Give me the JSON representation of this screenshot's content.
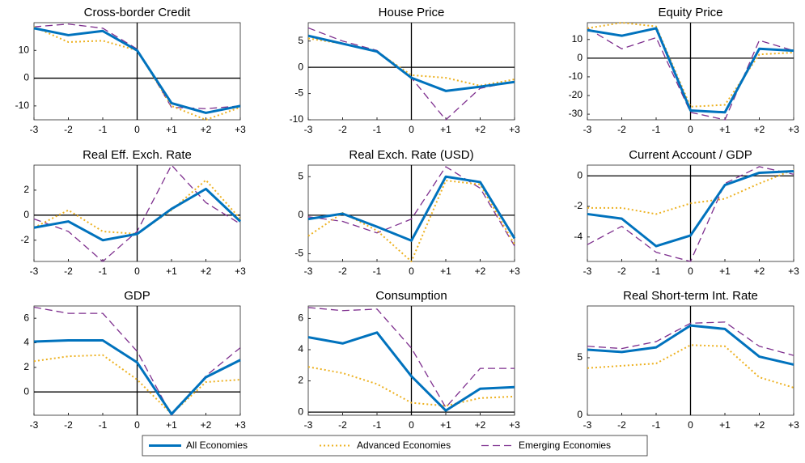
{
  "chart_data": [
    {
      "type": "line",
      "title": "Cross-border Credit",
      "categories": [
        "-3",
        "-2",
        "-1",
        "0",
        "+1",
        "+2",
        "+3"
      ],
      "ylim": [
        -15,
        20
      ],
      "yticks": [
        -10,
        0,
        10
      ],
      "series": [
        {
          "name": "All Economies",
          "color": "#0072bd",
          "style": "solid",
          "values": [
            18,
            15.5,
            17,
            10,
            -9,
            -12.5,
            -10
          ]
        },
        {
          "name": "Advanced Economies",
          "color": "#edb120",
          "style": "dotted",
          "values": [
            18.5,
            13,
            13.5,
            10,
            -10,
            -15,
            -10.5
          ]
        },
        {
          "name": "Emerging Economies",
          "color": "#7e2f8e",
          "style": "dashed",
          "values": [
            18.5,
            19.5,
            18,
            10.5,
            -10.5,
            -11,
            -10
          ]
        }
      ]
    },
    {
      "type": "line",
      "title": "House Price",
      "categories": [
        "-3",
        "-2",
        "-1",
        "0",
        "+1",
        "+2",
        "+3"
      ],
      "ylim": [
        -10,
        8.5
      ],
      "yticks": [
        -10,
        -5,
        0,
        5
      ],
      "series": [
        {
          "name": "All Economies",
          "color": "#0072bd",
          "style": "solid",
          "values": [
            6,
            4.5,
            3,
            -2,
            -4.5,
            -3.7,
            -2.8
          ]
        },
        {
          "name": "Advanced Economies",
          "color": "#edb120",
          "style": "dotted",
          "values": [
            5.5,
            4.5,
            3,
            -1.5,
            -2,
            -3.5,
            -2.3
          ]
        },
        {
          "name": "Emerging Economies",
          "color": "#7e2f8e",
          "style": "dashed",
          "values": [
            7.5,
            5,
            3.2,
            -2,
            -10,
            -4,
            -2.7
          ]
        }
      ]
    },
    {
      "type": "line",
      "title": "Equity Price",
      "categories": [
        "-3",
        "-2",
        "-1",
        "0",
        "+1",
        "+2",
        "+3"
      ],
      "ylim": [
        -33,
        19
      ],
      "yticks": [
        -30,
        -20,
        -10,
        0,
        10
      ],
      "series": [
        {
          "name": "All Economies",
          "color": "#0072bd",
          "style": "solid",
          "values": [
            15,
            12,
            16,
            -28,
            -29,
            5,
            4
          ]
        },
        {
          "name": "Advanced Economies",
          "color": "#edb120",
          "style": "dotted",
          "values": [
            16,
            19,
            17,
            -26,
            -25,
            2,
            3
          ]
        },
        {
          "name": "Emerging Economies",
          "color": "#7e2f8e",
          "style": "dashed",
          "values": [
            16,
            5,
            11,
            -29,
            -33,
            9.5,
            4
          ]
        }
      ]
    },
    {
      "type": "line",
      "title": "Real Eff. Exch. Rate",
      "categories": [
        "-3",
        "-2",
        "-1",
        "0",
        "+1",
        "+2",
        "+3"
      ],
      "ylim": [
        -3.7,
        4
      ],
      "yticks": [
        -2,
        0,
        2
      ],
      "series": [
        {
          "name": "All Economies",
          "color": "#0072bd",
          "style": "solid",
          "values": [
            -1,
            -0.5,
            -2,
            -1.5,
            0.5,
            2.1,
            -0.5
          ]
        },
        {
          "name": "Advanced Economies",
          "color": "#edb120",
          "style": "dotted",
          "values": [
            -1,
            0.4,
            -1.3,
            -1.5,
            0.4,
            2.8,
            -0.3
          ]
        },
        {
          "name": "Emerging Economies",
          "color": "#7e2f8e",
          "style": "dashed",
          "values": [
            -0.3,
            -1.3,
            -3.7,
            -1.3,
            4,
            1,
            -0.7
          ]
        }
      ]
    },
    {
      "type": "line",
      "title": "Real Exch. Rate (USD)",
      "categories": [
        "-3",
        "-2",
        "-1",
        "0",
        "+1",
        "+2",
        "+3"
      ],
      "ylim": [
        -6,
        6.5
      ],
      "yticks": [
        -5,
        0,
        5
      ],
      "series": [
        {
          "name": "All Economies",
          "color": "#0072bd",
          "style": "solid",
          "values": [
            -0.5,
            0.2,
            -1.5,
            -3.3,
            5,
            4.3,
            -3
          ]
        },
        {
          "name": "Advanced Economies",
          "color": "#edb120",
          "style": "dotted",
          "values": [
            -2.7,
            0.3,
            -2,
            -6,
            4.5,
            4,
            -3.8
          ]
        },
        {
          "name": "Emerging Economies",
          "color": "#7e2f8e",
          "style": "dashed",
          "values": [
            -0.2,
            -0.8,
            -2.3,
            -0.5,
            6.3,
            3.5,
            -4
          ]
        }
      ]
    },
    {
      "type": "line",
      "title": "Current Account / GDP",
      "categories": [
        "-3",
        "-2",
        "-1",
        "0",
        "+1",
        "+2",
        "+3"
      ],
      "ylim": [
        -5.6,
        0.7
      ],
      "yticks": [
        -4,
        -2,
        0
      ],
      "series": [
        {
          "name": "All Economies",
          "color": "#0072bd",
          "style": "solid",
          "values": [
            -2.5,
            -2.8,
            -4.6,
            -3.9,
            -0.6,
            0.2,
            0.3
          ]
        },
        {
          "name": "Advanced Economies",
          "color": "#edb120",
          "style": "dotted",
          "values": [
            -2.1,
            -2.1,
            -2.5,
            -1.8,
            -1.5,
            -0.5,
            0.4
          ]
        },
        {
          "name": "Emerging Economies",
          "color": "#7e2f8e",
          "style": "dashed",
          "values": [
            -4.5,
            -3.3,
            -5,
            -5.6,
            -0.5,
            0.6,
            0.1
          ]
        }
      ]
    },
    {
      "type": "line",
      "title": "GDP",
      "categories": [
        "-3",
        "-2",
        "-1",
        "0",
        "+1",
        "+2",
        "+3"
      ],
      "ylim": [
        -1.9,
        7
      ],
      "yticks": [
        0,
        2,
        4,
        6
      ],
      "series": [
        {
          "name": "All Economies",
          "color": "#0072bd",
          "style": "solid",
          "values": [
            4.1,
            4.2,
            4.2,
            2.4,
            -1.8,
            1.2,
            2.6
          ]
        },
        {
          "name": "Advanced Economies",
          "color": "#edb120",
          "style": "dotted",
          "values": [
            2.5,
            2.9,
            3,
            1,
            -1.8,
            0.8,
            1.0
          ]
        },
        {
          "name": "Emerging Economies",
          "color": "#7e2f8e",
          "style": "dashed",
          "values": [
            6.9,
            6.4,
            6.4,
            3.3,
            -1.9,
            1.3,
            3.6
          ]
        }
      ]
    },
    {
      "type": "line",
      "title": "Consumption",
      "categories": [
        "-3",
        "-2",
        "-1",
        "0",
        "+1",
        "+2",
        "+3"
      ],
      "ylim": [
        -0.2,
        6.8
      ],
      "yticks": [
        0,
        2,
        4,
        6
      ],
      "series": [
        {
          "name": "All Economies",
          "color": "#0072bd",
          "style": "solid",
          "values": [
            4.8,
            4.4,
            5.1,
            2.3,
            0.1,
            1.5,
            1.6
          ]
        },
        {
          "name": "Advanced Economies",
          "color": "#edb120",
          "style": "dotted",
          "values": [
            2.9,
            2.5,
            1.8,
            0.6,
            0.4,
            0.9,
            1.0
          ]
        },
        {
          "name": "Emerging Economies",
          "color": "#7e2f8e",
          "style": "dashed",
          "values": [
            6.7,
            6.5,
            6.6,
            4.1,
            0.3,
            2.8,
            2.8
          ]
        }
      ]
    },
    {
      "type": "line",
      "title": "Real Short-term Int. Rate",
      "categories": [
        "-3",
        "-2",
        "-1",
        "0",
        "+1",
        "+2",
        "+3"
      ],
      "ylim": [
        0,
        9.5
      ],
      "yticks": [
        0,
        5
      ],
      "series": [
        {
          "name": "All Economies",
          "color": "#0072bd",
          "style": "solid",
          "values": [
            5.7,
            5.5,
            5.9,
            7.8,
            7.5,
            5.1,
            4.4
          ]
        },
        {
          "name": "Advanced Economies",
          "color": "#edb120",
          "style": "dotted",
          "values": [
            4.1,
            4.3,
            4.5,
            6.1,
            6.0,
            3.3,
            2.4
          ]
        },
        {
          "name": "Emerging Economies",
          "color": "#7e2f8e",
          "style": "dashed",
          "values": [
            6.0,
            5.8,
            6.4,
            8.0,
            8.1,
            6.0,
            5.2
          ]
        }
      ]
    }
  ]
}
